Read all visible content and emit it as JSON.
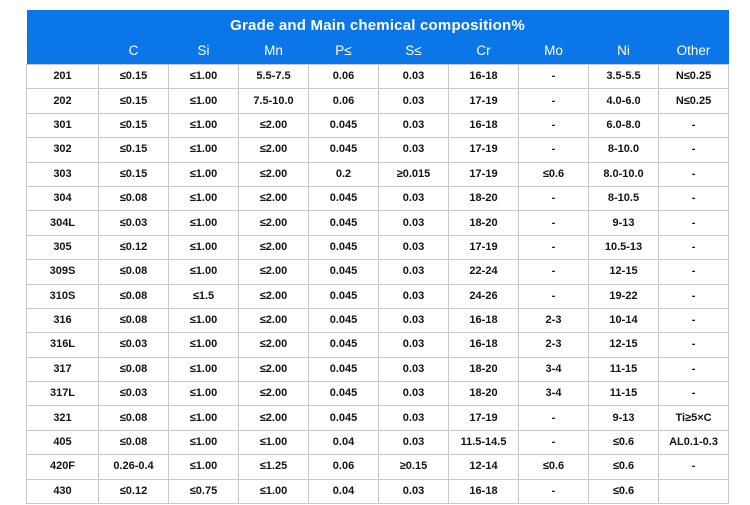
{
  "colors": {
    "header_bg": "#0b76e8",
    "border": "#c9c9c9",
    "text": "#141414",
    "header_text": "#ffffff"
  },
  "chart_data": {
    "type": "table",
    "title": "Grade and Main chemical composition%",
    "columns": [
      "",
      "C",
      "Si",
      "Mn",
      "P≤",
      "S≤",
      "Cr",
      "Mo",
      "Ni",
      "Other"
    ],
    "rows": [
      [
        "201",
        "≤0.15",
        "≤1.00",
        "5.5-7.5",
        "0.06",
        "0.03",
        "16-18",
        "-",
        "3.5-5.5",
        "N≤0.25"
      ],
      [
        "202",
        "≤0.15",
        "≤1.00",
        "7.5-10.0",
        "0.06",
        "0.03",
        "17-19",
        "-",
        "4.0-6.0",
        "N≤0.25"
      ],
      [
        "301",
        "≤0.15",
        "≤1.00",
        "≤2.00",
        "0.045",
        "0.03",
        "16-18",
        "-",
        "6.0-8.0",
        "-"
      ],
      [
        "302",
        "≤0.15",
        "≤1.00",
        "≤2.00",
        "0.045",
        "0.03",
        "17-19",
        "-",
        "8-10.0",
        "-"
      ],
      [
        "303",
        "≤0.15",
        "≤1.00",
        "≤2.00",
        "0.2",
        "≥0.015",
        "17-19",
        "≤0.6",
        "8.0-10.0",
        "-"
      ],
      [
        "304",
        "≤0.08",
        "≤1.00",
        "≤2.00",
        "0.045",
        "0.03",
        "18-20",
        "-",
        "8-10.5",
        "-"
      ],
      [
        "304L",
        "≤0.03",
        "≤1.00",
        "≤2.00",
        "0.045",
        "0.03",
        "18-20",
        "-",
        "9-13",
        "-"
      ],
      [
        "305",
        "≤0.12",
        "≤1.00",
        "≤2.00",
        "0.045",
        "0.03",
        "17-19",
        "-",
        "10.5-13",
        "-"
      ],
      [
        "309S",
        "≤0.08",
        "≤1.00",
        "≤2.00",
        "0.045",
        "0.03",
        "22-24",
        "-",
        "12-15",
        "-"
      ],
      [
        "310S",
        "≤0.08",
        "≤1.5",
        "≤2.00",
        "0.045",
        "0.03",
        "24-26",
        "-",
        "19-22",
        "-"
      ],
      [
        "316",
        "≤0.08",
        "≤1.00",
        "≤2.00",
        "0.045",
        "0.03",
        "16-18",
        "2-3",
        "10-14",
        "-"
      ],
      [
        "316L",
        "≤0.03",
        "≤1.00",
        "≤2.00",
        "0.045",
        "0.03",
        "16-18",
        "2-3",
        "12-15",
        "-"
      ],
      [
        "317",
        "≤0.08",
        "≤1.00",
        "≤2.00",
        "0.045",
        "0.03",
        "18-20",
        "3-4",
        "11-15",
        "-"
      ],
      [
        "317L",
        "≤0.03",
        "≤1.00",
        "≤2.00",
        "0.045",
        "0.03",
        "18-20",
        "3-4",
        "11-15",
        "-"
      ],
      [
        "321",
        "≤0.08",
        "≤1.00",
        "≤2.00",
        "0.045",
        "0.03",
        "17-19",
        "-",
        "9-13",
        "Ti≥5×C"
      ],
      [
        "405",
        "≤0.08",
        "≤1.00",
        "≤1.00",
        "0.04",
        "0.03",
        "11.5-14.5",
        "-",
        "≤0.6",
        "AL0.1-0.3"
      ],
      [
        "420F",
        "0.26-0.4",
        "≤1.00",
        "≤1.25",
        "0.06",
        "≥0.15",
        "12-14",
        "≤0.6",
        "≤0.6",
        "-"
      ],
      [
        "430",
        "≤0.12",
        "≤0.75",
        "≤1.00",
        "0.04",
        "0.03",
        "16-18",
        "-",
        "≤0.6",
        ""
      ]
    ]
  }
}
